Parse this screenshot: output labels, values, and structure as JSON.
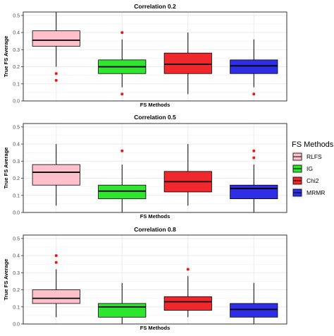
{
  "chart_data": [
    {
      "type": "boxplot",
      "title": "Correlation 0.2",
      "xlabel": "FS Methods",
      "ylabel": "True FS Average",
      "ylim": [
        0,
        0.52
      ],
      "yticks": [
        "0.0",
        "0.1",
        "0.2",
        "0.3",
        "0.4",
        "0.5"
      ],
      "grid": true,
      "series": [
        {
          "name": "RLFS",
          "color": "#FFC0CB",
          "min": 0.2,
          "q1": 0.32,
          "median": 0.355,
          "q3": 0.41,
          "max": 0.52,
          "outliers": [
            0.16,
            0.12
          ]
        },
        {
          "name": "IG",
          "color": "#2EE62E",
          "min": 0.08,
          "q1": 0.16,
          "median": 0.2,
          "q3": 0.24,
          "max": 0.36,
          "outliers": [
            0.4,
            0.04
          ]
        },
        {
          "name": "Chi2",
          "color": "#F0282D",
          "min": 0.04,
          "q1": 0.16,
          "median": 0.215,
          "q3": 0.28,
          "max": 0.4,
          "outliers": []
        },
        {
          "name": "MRMR",
          "color": "#2E2EE6",
          "min": 0.08,
          "q1": 0.16,
          "median": 0.205,
          "q3": 0.24,
          "max": 0.36,
          "outliers": [
            0.04
          ]
        }
      ]
    },
    {
      "type": "boxplot",
      "title": "Correlation 0.5",
      "xlabel": "FS Methods",
      "ylabel": "True FS Average",
      "ylim": [
        0,
        0.52
      ],
      "yticks": [
        "0.0",
        "0.1",
        "0.2",
        "0.3",
        "0.4",
        "0.5"
      ],
      "grid": true,
      "series": [
        {
          "name": "RLFS",
          "color": "#FFC0CB",
          "min": 0.04,
          "q1": 0.16,
          "median": 0.235,
          "q3": 0.28,
          "max": 0.4,
          "outliers": []
        },
        {
          "name": "IG",
          "color": "#2EE62E",
          "min": 0.0,
          "q1": 0.08,
          "median": 0.125,
          "q3": 0.16,
          "max": 0.28,
          "outliers": [
            0.36
          ]
        },
        {
          "name": "Chi2",
          "color": "#F0282D",
          "min": 0.04,
          "q1": 0.12,
          "median": 0.18,
          "q3": 0.24,
          "max": 0.4,
          "outliers": []
        },
        {
          "name": "MRMR",
          "color": "#2E2EE6",
          "min": 0.0,
          "q1": 0.08,
          "median": 0.14,
          "q3": 0.16,
          "max": 0.28,
          "outliers": [
            0.36,
            0.32
          ]
        }
      ]
    },
    {
      "type": "boxplot",
      "title": "Correlation 0.8",
      "xlabel": "FS Methods",
      "ylabel": "True FS Average",
      "ylim": [
        0,
        0.52
      ],
      "yticks": [
        "0.0",
        "0.1",
        "0.2",
        "0.3",
        "0.4",
        "0.5"
      ],
      "grid": true,
      "series": [
        {
          "name": "RLFS",
          "color": "#FFC0CB",
          "min": 0.04,
          "q1": 0.12,
          "median": 0.15,
          "q3": 0.2,
          "max": 0.32,
          "outliers": [
            0.4,
            0.36
          ]
        },
        {
          "name": "IG",
          "color": "#2EE62E",
          "min": 0.0,
          "q1": 0.04,
          "median": 0.1,
          "q3": 0.12,
          "max": 0.24,
          "outliers": []
        },
        {
          "name": "Chi2",
          "color": "#F0282D",
          "min": 0.04,
          "q1": 0.08,
          "median": 0.13,
          "q3": 0.16,
          "max": 0.28,
          "outliers": [
            0.32
          ]
        },
        {
          "name": "MRMR",
          "color": "#2E2EE6",
          "min": 0.0,
          "q1": 0.04,
          "median": 0.085,
          "q3": 0.12,
          "max": 0.24,
          "outliers": []
        }
      ]
    }
  ],
  "legend": {
    "title": "FS Methods",
    "position": "right",
    "items": [
      {
        "label": "RLFS",
        "color": "#FFC0CB"
      },
      {
        "label": "IG",
        "color": "#2EE62E"
      },
      {
        "label": "Chi2",
        "color": "#F0282D"
      },
      {
        "label": "MRMR",
        "color": "#2E2EE6"
      }
    ]
  },
  "colors": {
    "outlier": "#E41A1C",
    "panel_border": "#333333",
    "grid": "#EBEBEB"
  }
}
